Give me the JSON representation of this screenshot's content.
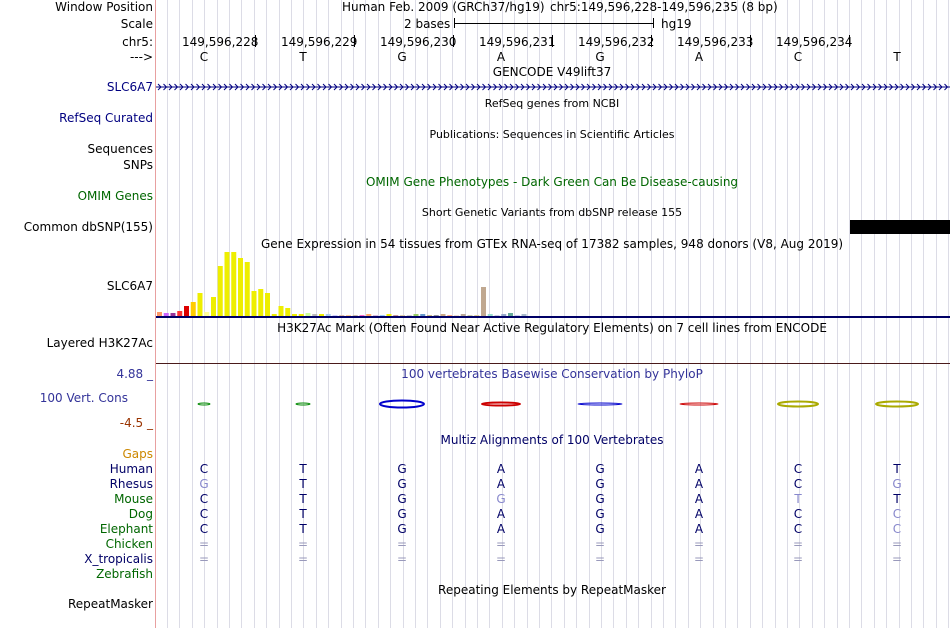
{
  "header": {
    "window_position_label": "Window Position",
    "assembly": "Human Feb. 2009 (GRCh37/hg19)",
    "position": "chr5:149,596,228-149,596,235 (8 bp)",
    "scale_label": "Scale",
    "scale_text": "2 bases",
    "scale_db": "hg19",
    "chrom_label": "chr5:",
    "strand_label": "--->",
    "coords": [
      "149,596,228",
      "149,596,229",
      "149,596,230",
      "149,596,231",
      "149,596,232",
      "149,596,233",
      "149,596,234"
    ]
  },
  "sequence": [
    "C",
    "T",
    "G",
    "A",
    "G",
    "A",
    "C",
    "T"
  ],
  "tracks": {
    "gencode": {
      "title": "GENCODE V49lift37",
      "label": "SLC6A7"
    },
    "refseq": {
      "title": "RefSeq genes from NCBI",
      "label": "RefSeq Curated"
    },
    "publications": {
      "title": "Publications: Sequences in Scientific Articles",
      "label": "Sequences"
    },
    "snps": {
      "label": "SNPs"
    },
    "omim": {
      "title": "OMIM Gene Phenotypes - Dark Green Can Be Disease-causing",
      "label": "OMIM Genes"
    },
    "dbsnp": {
      "title": "Short Genetic Variants from dbSNP release 155",
      "label": "Common dbSNP(155)"
    },
    "gtex": {
      "title": "Gene Expression in 54 tissues from GTEx RNA-seq of 17382 samples, 948 donors (V8, Aug 2019)",
      "label": "SLC6A7",
      "values": [
        4,
        3,
        3,
        5,
        10,
        14,
        22,
        4,
        18,
        48,
        62,
        62,
        56,
        52,
        24,
        26,
        22,
        2,
        10,
        8,
        2,
        2,
        3,
        2,
        2,
        2,
        1,
        1,
        1,
        1,
        1,
        2,
        1,
        1,
        2,
        1,
        1,
        1,
        2,
        2,
        1,
        1,
        2,
        1,
        1,
        2,
        1,
        1,
        28,
        2,
        1,
        2,
        3,
        1,
        2
      ],
      "colors": [
        "#ff9966",
        "#cc66ff",
        "#993399",
        "#ff3333",
        "#dd0000",
        "#ffcc00",
        "#eeee00",
        "#ffff99",
        "#eeee00",
        "#eeee00",
        "#eeee00",
        "#eeee00",
        "#eeee00",
        "#eeee00",
        "#eeee00",
        "#eeee00",
        "#eeee00",
        "#eeee00",
        "#eeee00",
        "#eeee00",
        "#eeee00",
        "#eeee00",
        "#ccff99",
        "#bbbbbb",
        "#eeee00",
        "#aaccee",
        "#ccccff",
        "#ddbbaa",
        "#ffcc99",
        "#ccbbaa",
        "#ff66cc",
        "#ffaa66",
        "#ddbbdd",
        "#99ccff",
        "#eeee00",
        "#cc9999",
        "#ddccaa",
        "#cccccc",
        "#99cc66",
        "#6699cc",
        "#ccbb88",
        "#999999",
        "#ccaa88",
        "#ffaa88",
        "#eeddcc",
        "#bbaa99",
        "#ccccaa",
        "#ddcc99",
        "#c0a890",
        "#99ddcc",
        "#ccccdd",
        "#99aacc",
        "#66aa99",
        "#ccccee",
        "#aabbcc"
      ]
    },
    "h3k27ac": {
      "title": "H3K27Ac Mark (Often Found Near Active Regulatory Elements) on 7 cell lines from ENCODE",
      "label": "Layered H3K27Ac"
    },
    "conservation": {
      "title": "100 vertebrates Basewise Conservation by PhyloP",
      "label": "100 Vert. Cons",
      "max": "4.88 _",
      "min": "-4.5 _",
      "glyph_colors": [
        "#008800",
        "#008800",
        "#0000cc",
        "#cc0000",
        "#0000cc",
        "#cc0000",
        "#aaaa00",
        "#aaaa00"
      ]
    },
    "multiz": {
      "title": "Multiz Alignments of 100 Vertebrates",
      "gaps_label": "Gaps"
    },
    "repeatmasker": {
      "title": "Repeating Elements by RepeatMasker",
      "label": "RepeatMasker"
    }
  },
  "alignment": [
    {
      "species": "Human",
      "color": "#000066",
      "bases": [
        "C",
        "T",
        "G",
        "A",
        "G",
        "A",
        "C",
        "T"
      ],
      "base_colors": [
        "#000066",
        "#000066",
        "#000066",
        "#000066",
        "#000066",
        "#000066",
        "#000066",
        "#000066"
      ]
    },
    {
      "species": "Rhesus",
      "color": "#000066",
      "bases": [
        "G",
        "T",
        "G",
        "A",
        "G",
        "A",
        "C",
        "G"
      ],
      "base_colors": [
        "#8888cc",
        "#000066",
        "#000066",
        "#000066",
        "#000066",
        "#000066",
        "#000066",
        "#8888cc"
      ]
    },
    {
      "species": "Mouse",
      "color": "#006600",
      "bases": [
        "C",
        "T",
        "G",
        "G",
        "G",
        "A",
        "T",
        "T"
      ],
      "base_colors": [
        "#000066",
        "#000066",
        "#000066",
        "#8888cc",
        "#000066",
        "#000066",
        "#8888cc",
        "#000066"
      ]
    },
    {
      "species": "Dog",
      "color": "#006600",
      "bases": [
        "C",
        "T",
        "G",
        "A",
        "G",
        "A",
        "C",
        "C"
      ],
      "base_colors": [
        "#000066",
        "#000066",
        "#000066",
        "#000066",
        "#000066",
        "#000066",
        "#000066",
        "#8888cc"
      ]
    },
    {
      "species": "Elephant",
      "color": "#006600",
      "bases": [
        "C",
        "T",
        "G",
        "A",
        "G",
        "A",
        "C",
        "C"
      ],
      "base_colors": [
        "#000066",
        "#000066",
        "#000066",
        "#000066",
        "#000066",
        "#000066",
        "#000066",
        "#8888cc"
      ]
    },
    {
      "species": "Chicken",
      "color": "#006600",
      "bases": [
        "=",
        "=",
        "=",
        "=",
        "=",
        "=",
        "=",
        "="
      ],
      "base_colors": [
        "#9999bb",
        "#9999bb",
        "#9999bb",
        "#9999bb",
        "#9999bb",
        "#9999bb",
        "#9999bb",
        "#9999bb"
      ]
    },
    {
      "species": "X_tropicalis",
      "color": "#000066",
      "bases": [
        "=",
        "=",
        "=",
        "=",
        "=",
        "=",
        "=",
        "="
      ],
      "base_colors": [
        "#9999bb",
        "#9999bb",
        "#9999bb",
        "#9999bb",
        "#9999bb",
        "#9999bb",
        "#9999bb",
        "#9999bb"
      ]
    },
    {
      "species": "Zebrafish",
      "color": "#006600",
      "bases": [
        "",
        "",
        "",
        "",
        "",
        "",
        "",
        ""
      ],
      "base_colors": [
        "#9999bb",
        "#9999bb",
        "#9999bb",
        "#9999bb",
        "#9999bb",
        "#9999bb",
        "#9999bb",
        "#9999bb"
      ]
    }
  ],
  "colors": {
    "gene_blue": "#000080",
    "omim_green": "#006600",
    "gaps_orange": "#cc8800",
    "phylop_blue": "#333399",
    "phylop_min_red": "#993300"
  }
}
